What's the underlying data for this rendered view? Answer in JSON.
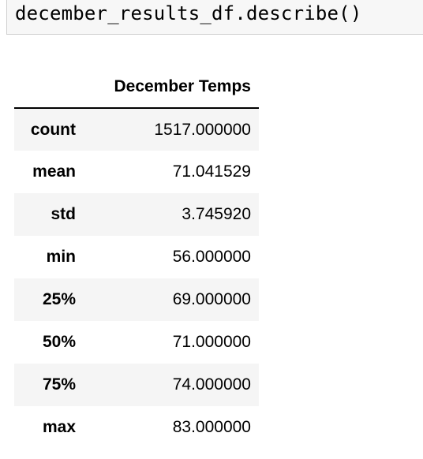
{
  "code_cell": {
    "source": "december_results_df.describe()"
  },
  "table": {
    "column_header": "December Temps",
    "rows": [
      {
        "label": "count",
        "value": "1517.000000"
      },
      {
        "label": "mean",
        "value": "71.041529"
      },
      {
        "label": "std",
        "value": "3.745920"
      },
      {
        "label": "min",
        "value": "56.000000"
      },
      {
        "label": "25%",
        "value": "69.000000"
      },
      {
        "label": "50%",
        "value": "71.000000"
      },
      {
        "label": "75%",
        "value": "74.000000"
      },
      {
        "label": "max",
        "value": "83.000000"
      }
    ]
  }
}
